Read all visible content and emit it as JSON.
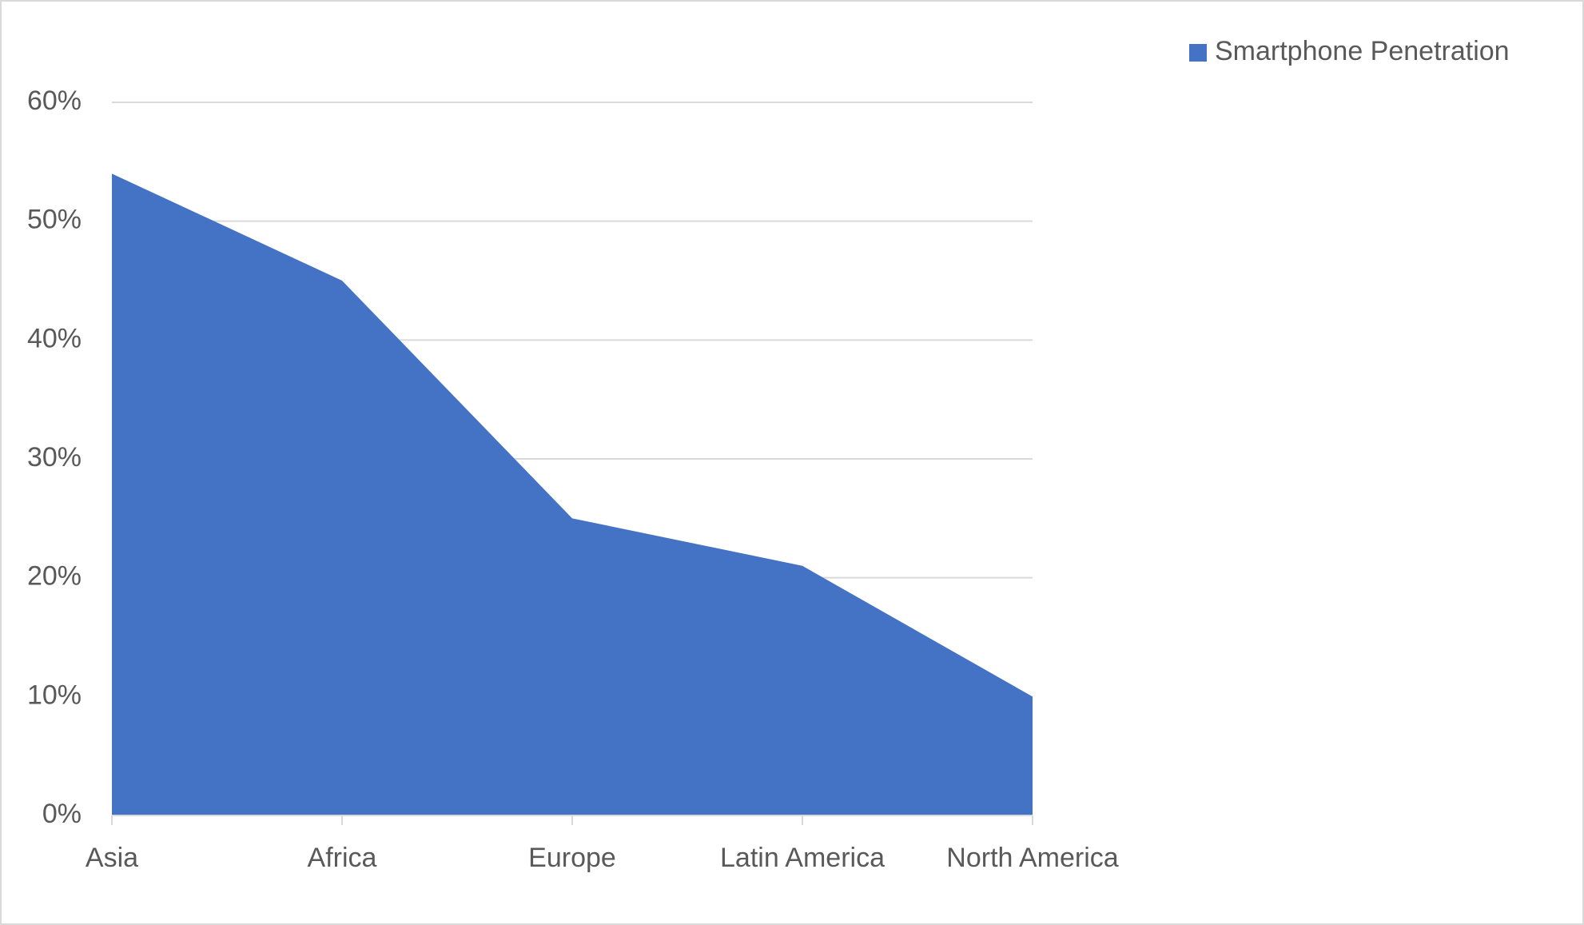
{
  "chart_data": {
    "type": "area",
    "categories": [
      "Asia",
      "Africa",
      "Europe",
      "Latin America",
      "North America"
    ],
    "series": [
      {
        "name": "Smartphone Penetration",
        "color": "#4472c4",
        "values": [
          54,
          45,
          25,
          21,
          10
        ]
      }
    ],
    "ylim": [
      0,
      60
    ],
    "yticks": [
      {
        "value": 0,
        "label": "0%"
      },
      {
        "value": 10,
        "label": "10%"
      },
      {
        "value": 20,
        "label": "20%"
      },
      {
        "value": 30,
        "label": "30%"
      },
      {
        "value": 40,
        "label": "40%"
      },
      {
        "value": 50,
        "label": "50%"
      },
      {
        "value": 60,
        "label": "60%"
      }
    ],
    "grid": true,
    "legend": "top-right"
  }
}
